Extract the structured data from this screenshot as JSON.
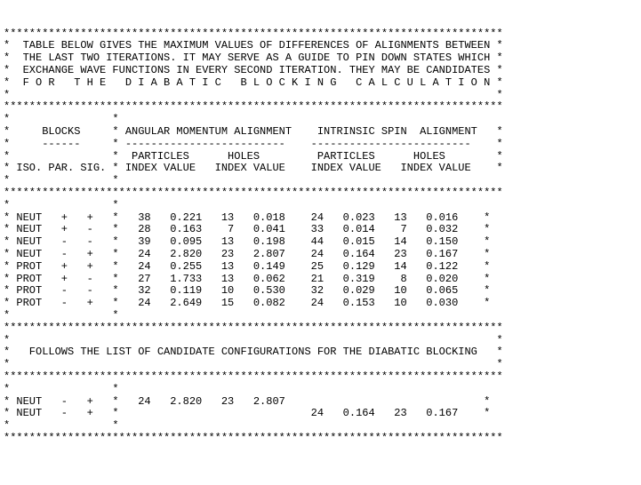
{
  "stars": {
    "full": "******************************************************************************",
    "leftOnly": "*",
    "rightOnly": "*",
    "rowPrefixStar": "*"
  },
  "header": {
    "l1": "*  TABLE BELOW GIVES THE MAXIMUM VALUES OF DIFFERENCES OF ALIGNMENTS BETWEEN *",
    "l2": "*  THE LAST TWO ITERATIONS. IT MAY SERVE AS A GUIDE TO PIN DOWN STATES WHICH *",
    "l3": "*  EXCHANGE WAVE FUNCTIONS IN EVERY SECOND ITERATION. THEY MAY BE CANDIDATES *",
    "l4": "*  F O R   T H E   D I A B A T I C   B L O C K I N G   C A L C U L A T I O N *"
  },
  "sectionHeader": {
    "l1": "*     BLOCKS     * ANGULAR MOMENTUM ALIGNMENT    INTRINSIC SPIN  ALIGNMENT   *",
    "l2": "*     ------     * -------------------------    -------------------------    *",
    "l3": "*                *  PARTICLES      HOLES         PARTICLES      HOLES        *",
    "l4": "* ISO. PAR. SIG. * INDEX VALUE   INDEX VALUE    INDEX VALUE   INDEX VALUE    *",
    "colOnly": "*                *                                                           *",
    "blankCol": "*                *"
  },
  "rows": [
    {
      "iso": "NEUT",
      "par": "+",
      "sig": "+",
      "p_idx": "38",
      "p_val": "0.221",
      "h_idx": "13",
      "h_val": "0.018",
      "sp_idx": "24",
      "sp_val": "0.023",
      "sh_idx": "13",
      "sh_val": "0.016"
    },
    {
      "iso": "NEUT",
      "par": "+",
      "sig": "-",
      "p_idx": "28",
      "p_val": "0.163",
      "h_idx": " 7",
      "h_val": "0.041",
      "sp_idx": "33",
      "sp_val": "0.014",
      "sh_idx": " 7",
      "sh_val": "0.032"
    },
    {
      "iso": "NEUT",
      "par": "-",
      "sig": "-",
      "p_idx": "39",
      "p_val": "0.095",
      "h_idx": "13",
      "h_val": "0.198",
      "sp_idx": "44",
      "sp_val": "0.015",
      "sh_idx": "14",
      "sh_val": "0.150"
    },
    {
      "iso": "NEUT",
      "par": "-",
      "sig": "+",
      "p_idx": "24",
      "p_val": "2.820",
      "h_idx": "23",
      "h_val": "2.807",
      "sp_idx": "24",
      "sp_val": "0.164",
      "sh_idx": "23",
      "sh_val": "0.167"
    },
    {
      "iso": "PROT",
      "par": "+",
      "sig": "+",
      "p_idx": "24",
      "p_val": "0.255",
      "h_idx": "13",
      "h_val": "0.149",
      "sp_idx": "25",
      "sp_val": "0.129",
      "sh_idx": "14",
      "sh_val": "0.122"
    },
    {
      "iso": "PROT",
      "par": "+",
      "sig": "-",
      "p_idx": "27",
      "p_val": "1.733",
      "h_idx": "13",
      "h_val": "0.062",
      "sp_idx": "21",
      "sp_val": "0.319",
      "sh_idx": " 8",
      "sh_val": "0.020"
    },
    {
      "iso": "PROT",
      "par": "-",
      "sig": "-",
      "p_idx": "32",
      "p_val": "0.119",
      "h_idx": "10",
      "h_val": "0.530",
      "sp_idx": "32",
      "sp_val": "0.029",
      "sh_idx": "10",
      "sh_val": "0.065"
    },
    {
      "iso": "PROT",
      "par": "-",
      "sig": "+",
      "p_idx": "24",
      "p_val": "2.649",
      "h_idx": "15",
      "h_val": "0.082",
      "sp_idx": "24",
      "sp_val": "0.153",
      "sh_idx": "10",
      "sh_val": "0.030"
    }
  ],
  "candidateHeader": "*   FOLLOWS THE LIST OF CANDIDATE CONFIGURATIONS FOR THE DIABATIC BLOCKING   *",
  "candidates": [
    {
      "iso": "NEUT",
      "par": "-",
      "sig": "+",
      "p_idx": "24",
      "p_val": "2.820",
      "h_idx": "23",
      "h_val": "2.807",
      "sp_idx": "  ",
      "sp_val": "     ",
      "sh_idx": "  ",
      "sh_val": "     "
    },
    {
      "iso": "NEUT",
      "par": "-",
      "sig": "+",
      "p_idx": "  ",
      "p_val": "     ",
      "h_idx": "  ",
      "h_val": "     ",
      "sp_idx": "24",
      "sp_val": "0.164",
      "sh_idx": "23",
      "sh_val": "0.167"
    }
  ],
  "emptySides": "*                                                                            *"
}
